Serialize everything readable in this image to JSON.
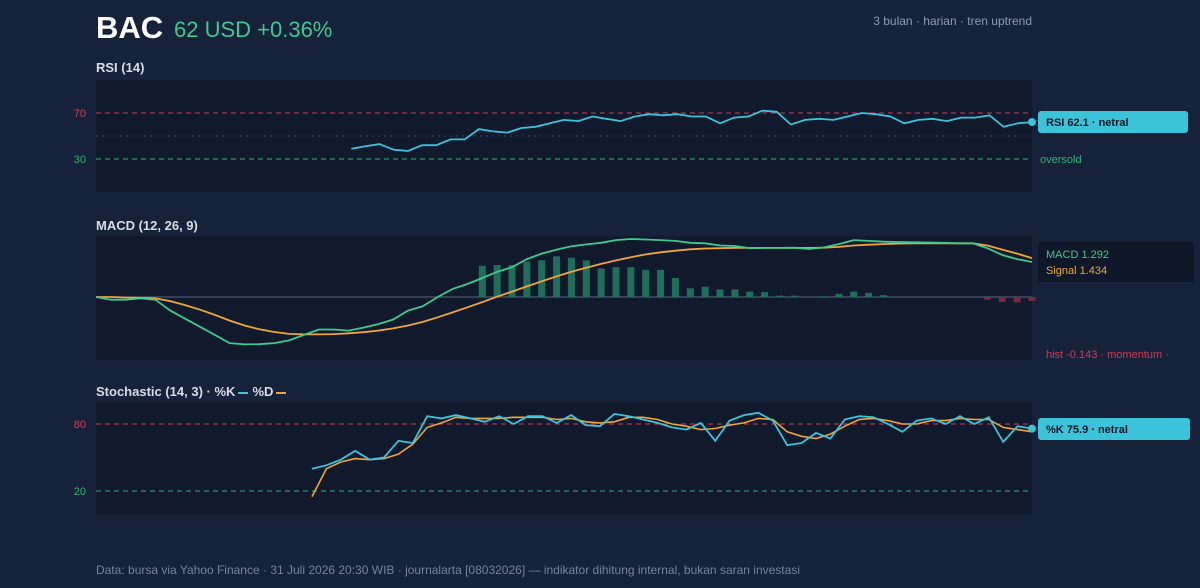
{
  "header": {
    "symbol": "BAC",
    "quote": "62 USD +0.36%",
    "meta": "3 bulan · harian · tren uptrend"
  },
  "colors": {
    "background": "#16213a",
    "panel": "#111a2c",
    "rsi_line": "#3bc3d9",
    "macd_line": "#3ec98e",
    "signal_line": "#f0a43a",
    "stoch_k": "#3bc3d9",
    "stoch_d": "#f0a43a",
    "overbought": "#d23b56",
    "oversold": "#2fb27a",
    "label_badge": "#3bc3d9"
  },
  "rsi": {
    "title": "RSI (14)",
    "tick_70": "70",
    "tick_30": "30",
    "label_oversold": "oversold",
    "badge": "RSI 62.1 · netral"
  },
  "macd": {
    "title": "MACD (12, 26, 9)",
    "label_macd": "MACD 1.292",
    "label_signal": "Signal 1.434",
    "label_hist": "hist -0.143 · momentum ·"
  },
  "stoch": {
    "title": "Stochastic (14, 3) · %K",
    "legend_d": "%D",
    "tick_80": "80",
    "tick_20": "20",
    "badge": "%K 75.9 · netral"
  },
  "footer": "Data: bursa via Yahoo Finance · 31 Juli 2026 20:30 WIB · journalarta [08032026] — indikator dihitung internal, bukan saran investasi",
  "chart_data": [
    {
      "type": "line",
      "title": "RSI (14)",
      "ylim": [
        0,
        100
      ],
      "reference_lines": [
        70,
        30
      ],
      "series": [
        {
          "name": "RSI",
          "values": [
            null,
            null,
            null,
            null,
            null,
            null,
            null,
            null,
            null,
            null,
            null,
            null,
            null,
            null,
            null,
            null,
            null,
            null,
            39,
            41,
            43,
            38,
            37,
            42,
            42,
            47,
            47,
            56,
            54,
            53,
            57,
            58,
            61,
            64,
            63,
            67,
            65,
            63,
            67,
            69,
            68,
            69,
            67,
            67,
            61,
            66,
            67,
            72,
            71,
            60,
            64,
            65,
            64,
            67,
            70,
            69,
            67,
            61,
            64,
            65,
            63,
            66,
            66,
            68,
            58,
            61,
            62.1
          ]
        }
      ]
    },
    {
      "type": "line",
      "title": "MACD (12, 26, 9)",
      "series": [
        {
          "name": "MACD",
          "values": [
            0.0,
            -0.1,
            -0.1,
            -0.05,
            -0.1,
            -0.5,
            -0.8,
            -1.1,
            -1.4,
            -1.7,
            -1.75,
            -1.74,
            -1.7,
            -1.6,
            -1.4,
            -1.2,
            -1.2,
            -1.24,
            -1.13,
            -1.0,
            -0.83,
            -0.5,
            -0.34,
            0.0,
            0.3,
            0.48,
            0.7,
            0.93,
            1.1,
            1.4,
            1.6,
            1.75,
            1.87,
            1.94,
            2.0,
            2.1,
            2.14,
            2.12,
            2.1,
            2.07,
            2.0,
            1.98,
            1.9,
            1.88,
            1.8,
            1.81,
            1.81,
            1.82,
            1.77,
            1.83,
            1.95,
            2.1,
            2.07,
            2.04,
            2.03,
            2.02,
            2.01,
            2.0,
            1.98,
            1.98,
            1.8,
            1.55,
            1.4,
            1.292
          ]
        },
        {
          "name": "Signal",
          "values": [
            0.0,
            0.0,
            -0.02,
            -0.03,
            -0.05,
            -0.15,
            -0.3,
            -0.47,
            -0.66,
            -0.87,
            -1.05,
            -1.19,
            -1.29,
            -1.36,
            -1.38,
            -1.38,
            -1.37,
            -1.34,
            -1.3,
            -1.24,
            -1.16,
            -1.05,
            -0.92,
            -0.75,
            -0.57,
            -0.38,
            -0.19,
            0.01,
            0.2,
            0.39,
            0.58,
            0.76,
            0.93,
            1.08,
            1.22,
            1.35,
            1.47,
            1.57,
            1.65,
            1.71,
            1.76,
            1.79,
            1.8,
            1.81,
            1.81,
            1.81,
            1.81,
            1.81,
            1.81,
            1.82,
            1.85,
            1.9,
            1.93,
            1.95,
            1.97,
            1.98,
            1.98,
            1.98,
            1.98,
            1.98,
            1.9,
            1.75,
            1.6,
            1.434
          ]
        },
        {
          "name": "hist",
          "values": [
            0.0,
            0.0,
            0.0,
            0.0,
            0.0,
            0.0,
            0.0,
            0.0,
            0.0,
            0.0,
            0.0,
            0.0,
            0.0,
            0.0,
            0.0,
            0.0,
            0.0,
            0.0,
            0.0,
            0.0,
            0.0,
            0.0,
            0.0,
            0.0,
            0.0,
            0.0,
            1.15,
            1.18,
            1.18,
            1.3,
            1.35,
            1.5,
            1.45,
            1.35,
            1.05,
            1.1,
            1.1,
            1.0,
            1.0,
            0.7,
            0.32,
            0.38,
            0.28,
            0.28,
            0.2,
            0.18,
            0.05,
            0.05,
            0.0,
            0.03,
            0.12,
            0.2,
            0.15,
            0.07,
            0.0,
            0.0,
            0.0,
            0.0,
            0.0,
            0.0,
            -0.1,
            -0.18,
            -0.2,
            -0.143
          ]
        }
      ]
    },
    {
      "type": "line",
      "title": "Stochastic (14, 3)",
      "ylim": [
        0,
        100
      ],
      "reference_lines": [
        80,
        20
      ],
      "series": [
        {
          "name": "%K",
          "values": [
            null,
            null,
            null,
            null,
            null,
            null,
            null,
            null,
            null,
            null,
            null,
            null,
            null,
            null,
            null,
            40,
            43,
            48,
            56,
            48,
            50,
            65,
            63,
            87,
            85,
            88,
            85,
            82,
            87,
            80,
            87,
            87,
            81,
            88,
            79,
            78,
            89,
            87,
            84,
            81,
            77,
            75,
            81,
            65,
            83,
            88,
            90,
            83,
            61,
            63,
            72,
            67,
            84,
            87,
            86,
            80,
            73,
            83,
            85,
            80,
            87,
            80,
            86,
            64,
            78,
            75.9
          ]
        },
        {
          "name": "%D",
          "values": [
            null,
            null,
            null,
            null,
            null,
            null,
            null,
            null,
            null,
            null,
            null,
            null,
            null,
            null,
            null,
            null,
            40,
            46,
            49,
            48,
            49,
            53,
            62,
            77,
            81,
            86,
            85,
            85,
            85,
            86,
            86,
            86,
            84,
            85,
            82,
            81,
            82,
            86,
            86,
            84,
            80,
            78,
            75,
            76,
            79,
            81,
            85,
            84,
            73,
            69,
            67,
            71,
            78,
            84,
            85,
            83,
            80,
            80,
            83,
            83,
            85,
            84,
            84,
            77,
            75,
            73
          ]
        }
      ]
    }
  ]
}
